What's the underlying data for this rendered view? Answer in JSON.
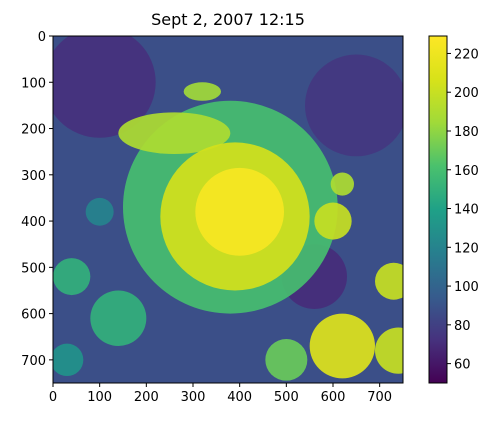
{
  "chart_data": {
    "type": "heatmap",
    "title": "Sept 2, 2007 12:15",
    "xlabel": "",
    "ylabel": "",
    "x_ticks": [
      0,
      100,
      200,
      300,
      400,
      500,
      600,
      700
    ],
    "y_ticks": [
      0,
      100,
      200,
      300,
      400,
      500,
      600,
      700
    ],
    "xlim": [
      0,
      750
    ],
    "ylim": [
      750,
      0
    ],
    "y_inverted": true,
    "colormap": "viridis",
    "colorbar": {
      "ticks": [
        60,
        80,
        100,
        120,
        140,
        160,
        180,
        200,
        220
      ],
      "range": [
        50,
        229
      ]
    },
    "image": {
      "width": 750,
      "height": 750,
      "background_value": 88,
      "features": [
        {
          "kind": "storm_core",
          "cx": 400,
          "cy": 380,
          "r": 95,
          "value": 225
        },
        {
          "kind": "storm_inner",
          "cx": 390,
          "cy": 390,
          "r": 160,
          "value": 205
        },
        {
          "kind": "storm_outer",
          "cx": 380,
          "cy": 370,
          "r": 230,
          "value": 160
        },
        {
          "kind": "cloud_band",
          "cx": 260,
          "cy": 210,
          "rx": 120,
          "ry": 45,
          "value": 190
        },
        {
          "kind": "cloud_band",
          "cx": 320,
          "cy": 120,
          "rx": 40,
          "ry": 20,
          "value": 185
        },
        {
          "kind": "cloud_cell",
          "cx": 600,
          "cy": 400,
          "r": 40,
          "value": 200
        },
        {
          "kind": "cloud_cell",
          "cx": 620,
          "cy": 320,
          "r": 25,
          "value": 190
        },
        {
          "kind": "cloud_cell",
          "cx": 730,
          "cy": 530,
          "r": 40,
          "value": 200
        },
        {
          "kind": "cloud_cell",
          "cx": 620,
          "cy": 670,
          "r": 70,
          "value": 210
        },
        {
          "kind": "cloud_cell",
          "cx": 740,
          "cy": 680,
          "r": 50,
          "value": 200
        },
        {
          "kind": "cloud_cell",
          "cx": 500,
          "cy": 700,
          "r": 45,
          "value": 170
        },
        {
          "kind": "cloud_cell",
          "cx": 140,
          "cy": 610,
          "r": 60,
          "value": 150
        },
        {
          "kind": "cloud_cell",
          "cx": 40,
          "cy": 520,
          "r": 40,
          "value": 150
        },
        {
          "kind": "cloud_cell",
          "cx": 30,
          "cy": 700,
          "r": 35,
          "value": 130
        },
        {
          "kind": "cloud_cell",
          "cx": 100,
          "cy": 380,
          "r": 30,
          "value": 120
        },
        {
          "kind": "dry_slot",
          "cx": 100,
          "cy": 100,
          "r": 120,
          "value": 72
        },
        {
          "kind": "dry_slot",
          "cx": 650,
          "cy": 150,
          "r": 110,
          "value": 75
        },
        {
          "kind": "dry_slot",
          "cx": 560,
          "cy": 520,
          "r": 70,
          "value": 70
        }
      ]
    }
  }
}
